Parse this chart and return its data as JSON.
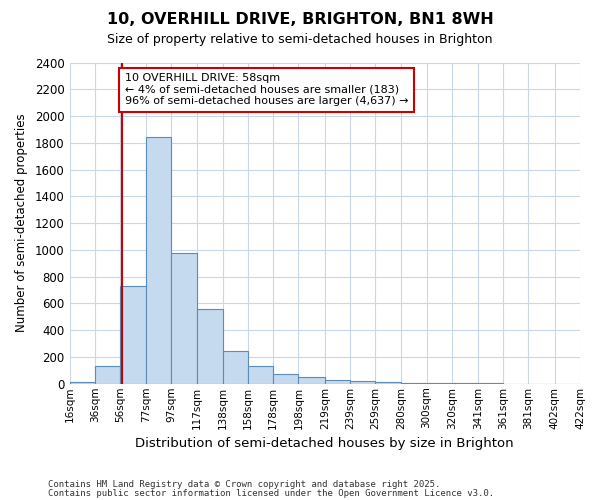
{
  "title": "10, OVERHILL DRIVE, BRIGHTON, BN1 8WH",
  "subtitle": "Size of property relative to semi-detached houses in Brighton",
  "xlabel": "Distribution of semi-detached houses by size in Brighton",
  "ylabel": "Number of semi-detached properties",
  "footnote1": "Contains HM Land Registry data © Crown copyright and database right 2025.",
  "footnote2": "Contains public sector information licensed under the Open Government Licence v3.0.",
  "annotation_title": "10 OVERHILL DRIVE: 58sqm",
  "annotation_line2": "← 4% of semi-detached houses are smaller (183)",
  "annotation_line3": "96% of semi-detached houses are larger (4,637) →",
  "bar_left_edges": [
    16,
    36,
    56,
    77,
    97,
    117,
    138,
    158,
    178,
    198,
    219,
    239,
    259,
    280,
    300,
    320,
    341,
    361,
    381,
    402
  ],
  "bar_widths": [
    20,
    20,
    21,
    20,
    20,
    21,
    20,
    20,
    20,
    21,
    20,
    20,
    21,
    20,
    20,
    21,
    20,
    20,
    21,
    20
  ],
  "bar_heights": [
    10,
    130,
    730,
    1840,
    980,
    555,
    248,
    132,
    72,
    50,
    28,
    18,
    14,
    8,
    5,
    3,
    2,
    1,
    1,
    0
  ],
  "bar_color": "#c5d9ef",
  "bar_edge_color": "#5b8db8",
  "property_line_x": 58,
  "property_line_color": "#cc0000",
  "annotation_box_color": "#cc0000",
  "ylim": [
    0,
    2400
  ],
  "yticks": [
    0,
    200,
    400,
    600,
    800,
    1000,
    1200,
    1400,
    1600,
    1800,
    2000,
    2200,
    2400
  ],
  "xtick_labels": [
    "16sqm",
    "36sqm",
    "56sqm",
    "77sqm",
    "97sqm",
    "117sqm",
    "138sqm",
    "158sqm",
    "178sqm",
    "198sqm",
    "219sqm",
    "239sqm",
    "259sqm",
    "280sqm",
    "300sqm",
    "320sqm",
    "341sqm",
    "361sqm",
    "381sqm",
    "402sqm",
    "422sqm"
  ],
  "xlim_left": 16,
  "xlim_right": 422,
  "grid_color": "#c8d8e8",
  "background_color": "#ffffff",
  "plot_bg_color": "#ffffff"
}
